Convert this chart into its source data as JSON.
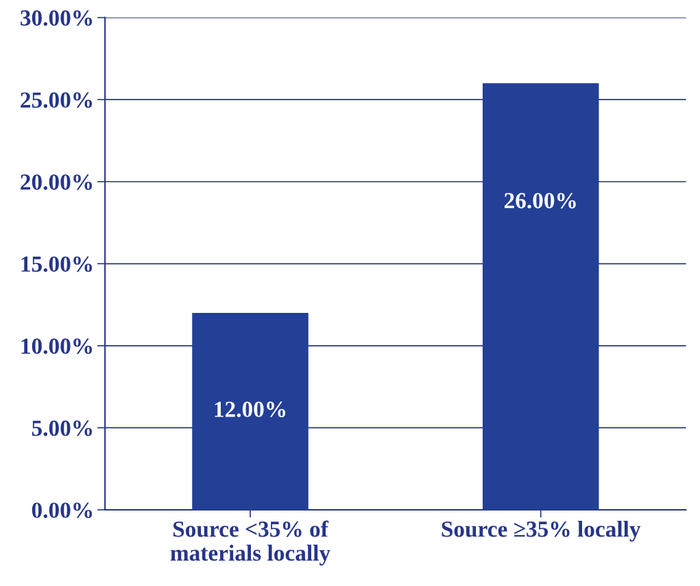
{
  "chart_data": {
    "type": "bar",
    "categories": [
      "Source <35% of\nmaterials locally",
      "Source ≥35% locally"
    ],
    "values": [
      12,
      26
    ],
    "value_labels": [
      "12.00%",
      "26.00%"
    ],
    "color": "#233f96",
    "ylim": [
      0,
      30
    ],
    "yticks": [
      {
        "value": 0,
        "label": "0.00%"
      },
      {
        "value": 5,
        "label": "5.00%"
      },
      {
        "value": 10,
        "label": "10.00%"
      },
      {
        "value": 15,
        "label": "15.00%"
      },
      {
        "value": 20,
        "label": "20.00%"
      },
      {
        "value": 25,
        "label": "25.00%"
      },
      {
        "value": 30,
        "label": "30.00%"
      }
    ],
    "grid": "y",
    "legend": false
  }
}
